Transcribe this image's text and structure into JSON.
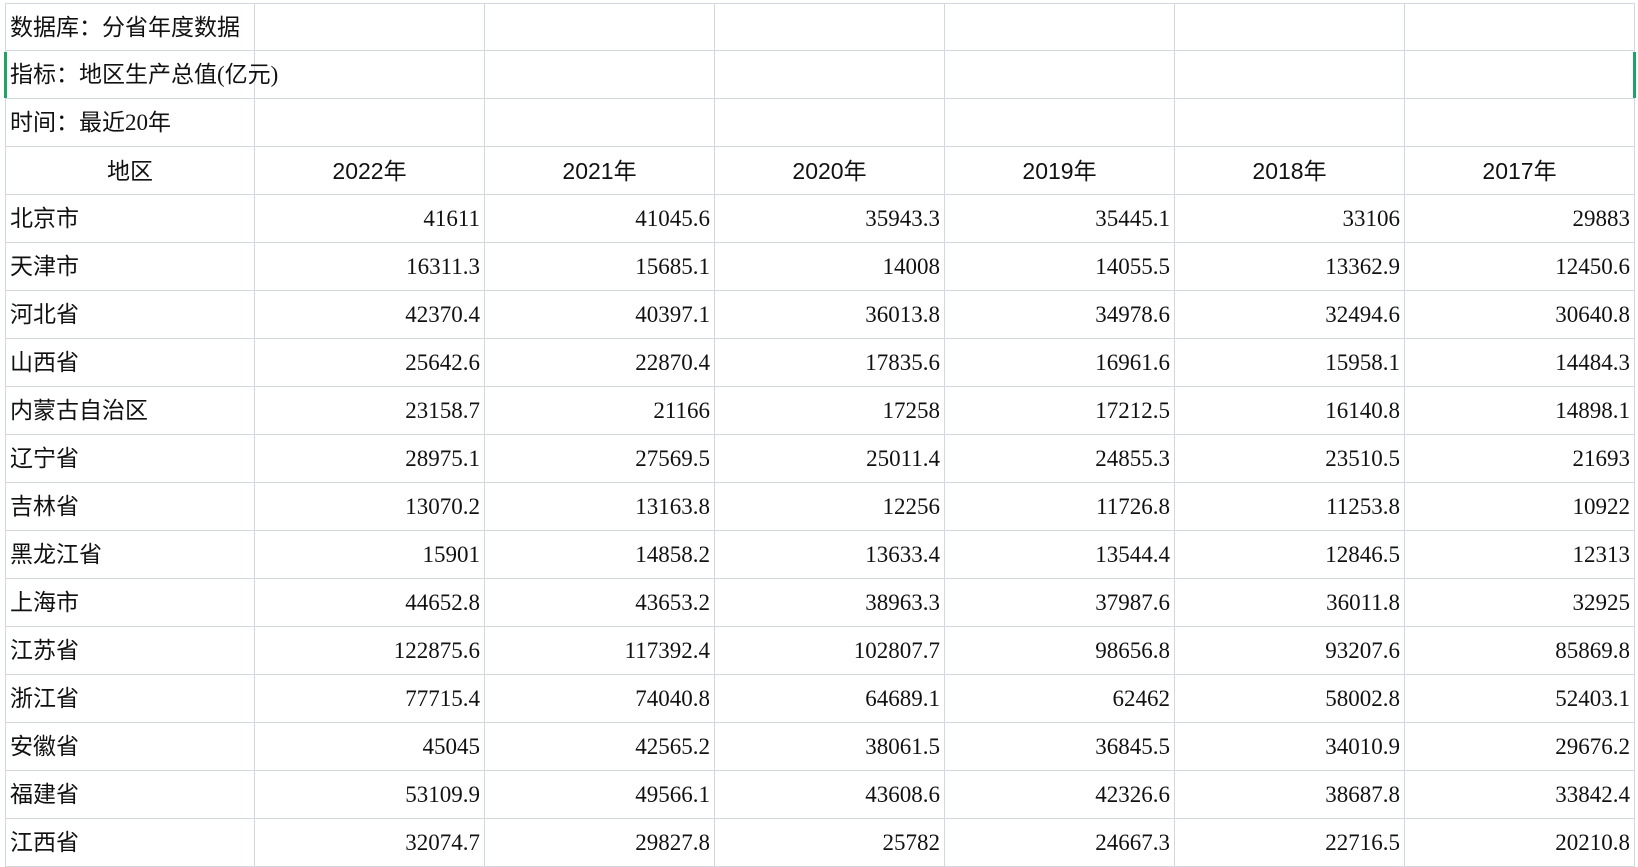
{
  "header": {
    "lines": [
      "数据库：分省年度数据",
      "指标：地区生产总值(亿元)",
      "时间：最近20年"
    ]
  },
  "table": {
    "columns": [
      "地区",
      "2022年",
      "2021年",
      "2020年",
      "2019年",
      "2018年",
      "2017年"
    ],
    "rows": [
      [
        "北京市",
        41611,
        41045.6,
        35943.3,
        35445.1,
        33106,
        29883
      ],
      [
        "天津市",
        16311.3,
        15685.1,
        14008,
        14055.5,
        13362.9,
        12450.6
      ],
      [
        "河北省",
        42370.4,
        40397.1,
        36013.8,
        34978.6,
        32494.6,
        30640.8
      ],
      [
        "山西省",
        25642.6,
        22870.4,
        17835.6,
        16961.6,
        15958.1,
        14484.3
      ],
      [
        "内蒙古自治区",
        23158.7,
        21166,
        17258,
        17212.5,
        16140.8,
        14898.1
      ],
      [
        "辽宁省",
        28975.1,
        27569.5,
        25011.4,
        24855.3,
        23510.5,
        21693
      ],
      [
        "吉林省",
        13070.2,
        13163.8,
        12256,
        11726.8,
        11253.8,
        10922
      ],
      [
        "黑龙江省",
        15901,
        14858.2,
        13633.4,
        13544.4,
        12846.5,
        12313
      ],
      [
        "上海市",
        44652.8,
        43653.2,
        38963.3,
        37987.6,
        36011.8,
        32925
      ],
      [
        "江苏省",
        122875.6,
        117392.4,
        102807.7,
        98656.8,
        93207.6,
        85869.8
      ],
      [
        "浙江省",
        77715.4,
        74040.8,
        64689.1,
        62462,
        58002.8,
        52403.1
      ],
      [
        "安徽省",
        45045,
        42565.2,
        38061.5,
        36845.5,
        34010.9,
        29676.2
      ],
      [
        "福建省",
        53109.9,
        49566.1,
        43608.6,
        42326.6,
        38687.8,
        33842.4
      ],
      [
        "江西省",
        32074.7,
        29827.8,
        25782,
        24667.3,
        22716.5,
        20210.8
      ]
    ]
  }
}
